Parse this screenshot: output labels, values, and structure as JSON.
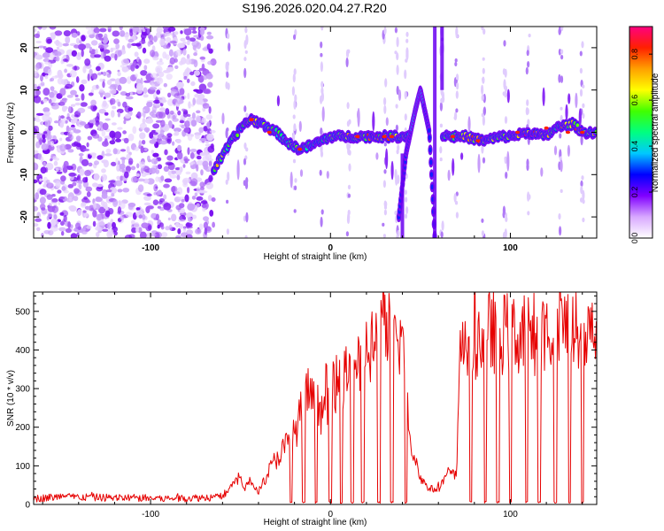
{
  "title": "S196.2026.020.04.27.R20",
  "chart_data": [
    {
      "type": "heatmap",
      "xlabel": "Height of straight line (km)",
      "ylabel": "Frequency (Hz)",
      "xlim": [
        -165,
        148
      ],
      "ylim": [
        -25,
        25
      ],
      "xticks": [
        -100,
        0,
        100
      ],
      "xtick_labels": [
        "-100",
        "0",
        "100"
      ],
      "yticks": [
        -20,
        -10,
        0,
        10,
        20
      ],
      "ytick_labels": [
        "-20",
        "-10",
        "0",
        "10",
        "20"
      ],
      "colorbar": {
        "label": "Normalized spectral amplitude",
        "range": [
          0,
          0.92
        ],
        "ticks": [
          0.0,
          0.2,
          0.4,
          0.6,
          0.8
        ],
        "tick_labels": [
          "0.0",
          "0.2",
          "0.4",
          "0.6",
          "0.8"
        ],
        "colormap": [
          "#ffffff",
          "#d8a8ff",
          "#8000ff",
          "#0000ff",
          "#00c8ff",
          "#00ff80",
          "#40ff00",
          "#ffff00",
          "#ffa000",
          "#ff2000",
          "#ff0080"
        ]
      },
      "ridge": {
        "x": [
          -65,
          -55,
          -48,
          -44,
          -38,
          -30,
          -22,
          -17,
          -10,
          -5,
          0,
          10,
          20,
          30,
          40,
          55,
          68,
          75,
          85,
          95,
          100,
          110,
          120,
          125,
          135,
          140,
          148
        ],
        "freq": [
          -9,
          -2,
          2,
          3,
          2,
          0,
          -3,
          -4,
          -3,
          -2,
          -1,
          -1,
          -1,
          -1,
          -1,
          0,
          -1,
          -1,
          -2,
          -1,
          -1,
          0,
          -1,
          1,
          2,
          0,
          0
        ],
        "amplitude": [
          0.6,
          0.5,
          0.55,
          0.7,
          0.5,
          0.45,
          0.5,
          0.65,
          0.4,
          0.45,
          0.5,
          0.6,
          0.7,
          0.75,
          0.6,
          0.3,
          0.65,
          0.6,
          0.75,
          0.55,
          0.6,
          0.8,
          0.7,
          0.6,
          0.7,
          0.65,
          0.55
        ]
      },
      "feature_excursion": {
        "x": [
          38,
          42,
          47,
          50,
          55,
          58
        ],
        "freq": [
          -20,
          -5,
          5,
          10,
          0,
          -25
        ]
      },
      "noise_region_x": [
        -165,
        -65
      ]
    },
    {
      "type": "line",
      "xlabel": "Height of straight line (km)",
      "ylabel": "SNR (10 * v/v)",
      "xlim": [
        -165,
        148
      ],
      "ylim": [
        0,
        550
      ],
      "xticks": [
        -100,
        0,
        100
      ],
      "xtick_labels": [
        "-100",
        "0",
        "100"
      ],
      "yticks": [
        0,
        100,
        200,
        300,
        400,
        500
      ],
      "ytick_labels": [
        "0",
        "100",
        "200",
        "300",
        "400",
        "500"
      ],
      "color": "#e60000",
      "series": [
        {
          "name": "SNR",
          "x": [
            -165,
            -150,
            -130,
            -110,
            -90,
            -70,
            -60,
            -55,
            -50,
            -48,
            -45,
            -40,
            -35,
            -30,
            -25,
            -20,
            -15,
            -10,
            -5,
            0,
            5,
            10,
            15,
            20,
            25,
            30,
            35,
            40,
            45,
            50,
            55,
            60,
            65,
            70,
            72,
            80,
            90,
            100,
            110,
            120,
            130,
            140,
            148
          ],
          "values": [
            15,
            20,
            18,
            17,
            15,
            18,
            20,
            50,
            70,
            40,
            60,
            35,
            80,
            120,
            150,
            180,
            260,
            270,
            240,
            290,
            320,
            330,
            380,
            400,
            420,
            440,
            450,
            420,
            150,
            70,
            40,
            40,
            80,
            70,
            420,
            430,
            450,
            440,
            440,
            450,
            460,
            430,
            440
          ]
        }
      ],
      "dropouts_x": [
        -22,
        -15,
        -8,
        0,
        6,
        12,
        18,
        27,
        34,
        42,
        78,
        86,
        93,
        100,
        109,
        116,
        125,
        133,
        140
      ]
    }
  ]
}
